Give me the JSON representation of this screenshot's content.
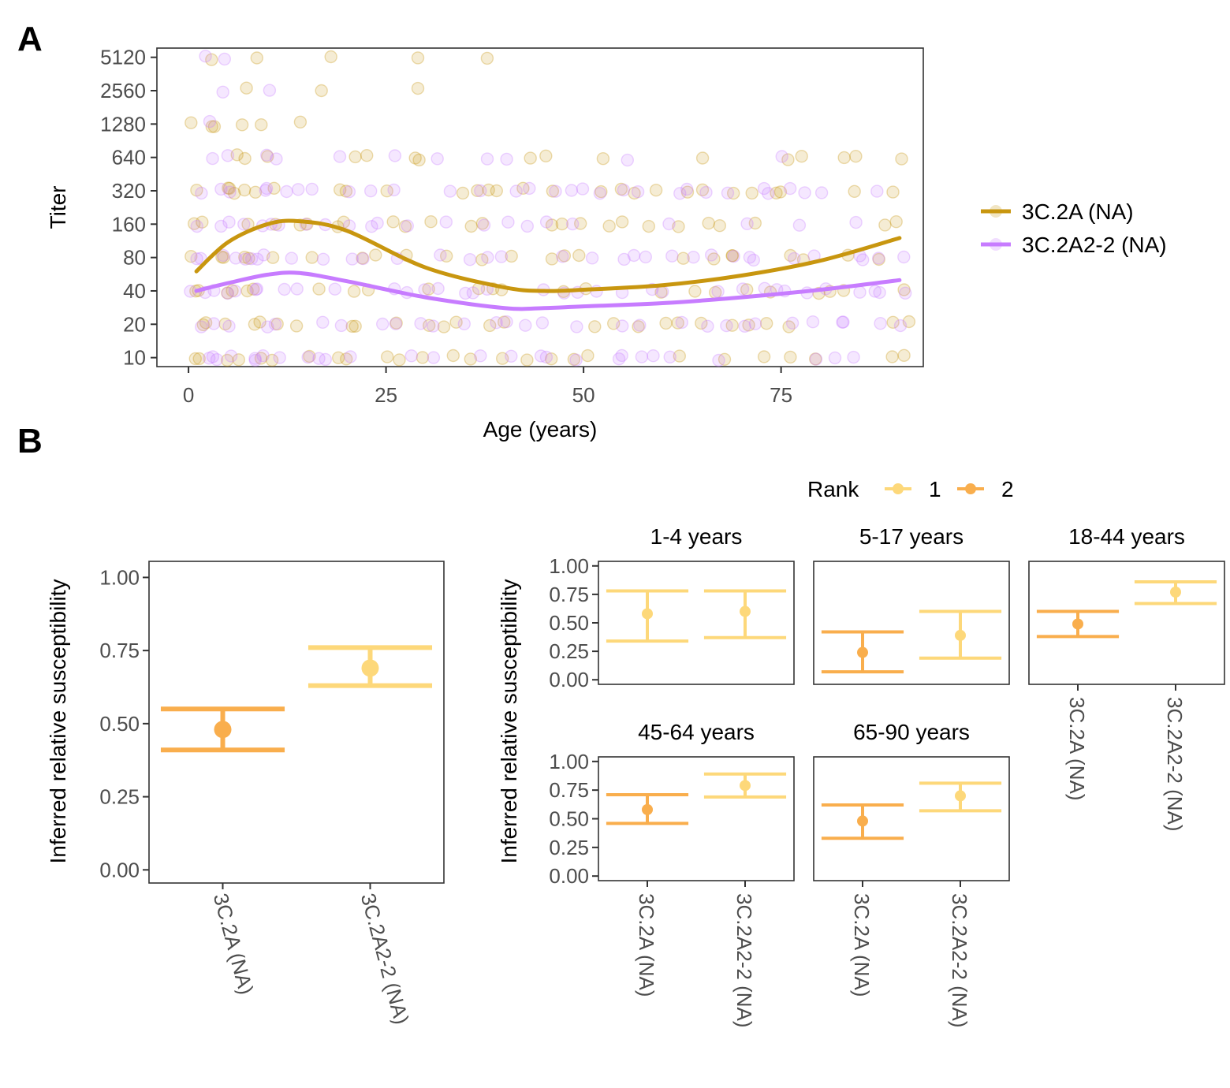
{
  "panel_labels": [
    "A",
    "B"
  ],
  "colors": {
    "3C.2A (NA)": "#c8960f",
    "3C.2A2-2 (NA)": "#c77cff",
    "rank_1": "#fdd87a",
    "rank_2": "#f9ae4d"
  },
  "chart_data": [
    {
      "panel": "A",
      "type": "scatter",
      "xlabel": "Age (years)",
      "ylabel": "Titer",
      "xlim": [
        -4,
        93
      ],
      "xticks": [
        0,
        25,
        50,
        75
      ],
      "ylim": [
        8.3,
        6200
      ],
      "yscale": "log2",
      "yticks": [
        10,
        20,
        40,
        80,
        160,
        320,
        640,
        1280,
        2560,
        5120
      ],
      "grid": false,
      "legend_position": "right",
      "series": [
        {
          "name": "3C.2A (NA)",
          "points_note_ages": [
            1,
            2,
            3,
            4,
            5,
            6,
            7,
            8,
            9,
            10,
            12,
            14,
            16,
            18,
            20,
            22,
            24,
            26,
            28,
            30,
            32,
            34,
            36,
            38,
            40,
            42,
            44,
            46,
            48,
            50,
            52,
            54,
            56,
            58,
            60,
            62,
            64,
            66,
            68,
            70,
            72,
            74,
            76,
            78,
            80,
            82,
            84,
            86,
            88,
            90
          ],
          "smooth": {
            "x": [
              1,
              5,
              10,
              14,
              20,
              30,
              40,
              45,
              50,
              60,
              70,
              80,
              90
            ],
            "y": [
              60,
              110,
              160,
              170,
              140,
              65,
              43,
              40,
              41,
              45,
              55,
              75,
              120
            ]
          }
        },
        {
          "name": "3C.2A2-2 (NA)",
          "smooth": {
            "x": [
              1,
              5,
              10,
              14,
              20,
              30,
              40,
              45,
              50,
              60,
              70,
              80,
              90
            ],
            "y": [
              40,
              47,
              56,
              58,
              49,
              35,
              28,
              28,
              29,
              31,
              35,
              41,
              50
            ]
          }
        }
      ]
    },
    {
      "panel": "B-overall",
      "type": "errorbar",
      "ylabel": "Inferred relative susceptibility",
      "ylim": [
        0,
        1.05
      ],
      "yticks": [
        "0.00",
        "0.25",
        "0.50",
        "0.75",
        "1.00"
      ],
      "categories": [
        "3C.2A (NA)",
        "3C.2A2-2 (NA)"
      ],
      "points": [
        {
          "category": "3C.2A (NA)",
          "rank": "2",
          "estimate": 0.48,
          "lower": 0.41,
          "upper": 0.55
        },
        {
          "category": "3C.2A2-2 (NA)",
          "rank": "1",
          "estimate": 0.69,
          "lower": 0.63,
          "upper": 0.76
        }
      ]
    },
    {
      "panel": "B-by-age",
      "type": "errorbar",
      "ylabel": "Inferred relative susceptibility",
      "ylim": [
        -0.05,
        1.05
      ],
      "yticks": [
        "0.00",
        "0.25",
        "0.50",
        "0.75",
        "1.00"
      ],
      "categories": [
        "3C.2A (NA)",
        "3C.2A2-2 (NA)"
      ],
      "legend": {
        "title": "Rank",
        "entries": [
          "1",
          "2"
        ],
        "position": "top"
      },
      "facets": [
        {
          "label": "1-4 years",
          "points": [
            {
              "category": "3C.2A (NA)",
              "rank": "1",
              "estimate": 0.58,
              "lower": 0.34,
              "upper": 0.78
            },
            {
              "category": "3C.2A2-2 (NA)",
              "rank": "1",
              "estimate": 0.6,
              "lower": 0.37,
              "upper": 0.78
            }
          ]
        },
        {
          "label": "5-17 years",
          "points": [
            {
              "category": "3C.2A (NA)",
              "rank": "2",
              "estimate": 0.24,
              "lower": 0.07,
              "upper": 0.42
            },
            {
              "category": "3C.2A2-2 (NA)",
              "rank": "1",
              "estimate": 0.39,
              "lower": 0.19,
              "upper": 0.6
            }
          ]
        },
        {
          "label": "18-44 years",
          "points": [
            {
              "category": "3C.2A (NA)",
              "rank": "2",
              "estimate": 0.49,
              "lower": 0.38,
              "upper": 0.6
            },
            {
              "category": "3C.2A2-2 (NA)",
              "rank": "1",
              "estimate": 0.77,
              "lower": 0.67,
              "upper": 0.86
            }
          ]
        },
        {
          "label": "45-64 years",
          "points": [
            {
              "category": "3C.2A (NA)",
              "rank": "2",
              "estimate": 0.58,
              "lower": 0.46,
              "upper": 0.71
            },
            {
              "category": "3C.2A2-2 (NA)",
              "rank": "1",
              "estimate": 0.79,
              "lower": 0.69,
              "upper": 0.89
            }
          ]
        },
        {
          "label": "65-90 years",
          "points": [
            {
              "category": "3C.2A (NA)",
              "rank": "2",
              "estimate": 0.48,
              "lower": 0.33,
              "upper": 0.62
            },
            {
              "category": "3C.2A2-2 (NA)",
              "rank": "1",
              "estimate": 0.7,
              "lower": 0.57,
              "upper": 0.81
            }
          ]
        }
      ]
    }
  ]
}
